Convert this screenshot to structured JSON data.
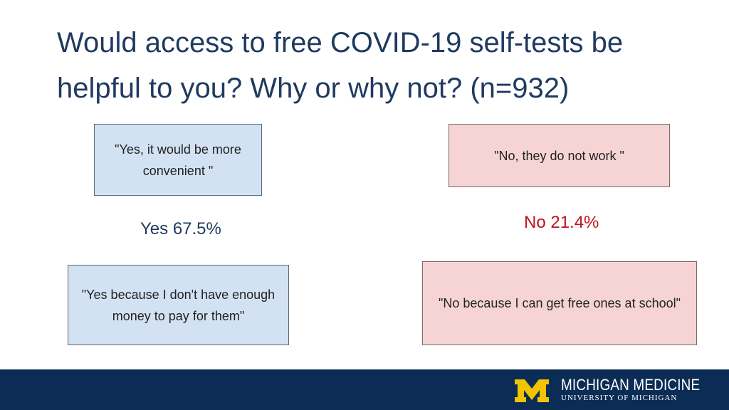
{
  "title": "Would access to free COVID-19 self-tests be helpful to you? Why or why not? (n=932)",
  "quotes": {
    "yes_convenient": "\"Yes, it would be more convenient \"",
    "no_dont_work": "\"No, they do not work \"",
    "yes_money": "\"Yes because I don't have enough money to pay for them\"",
    "no_school": "\"No because I can get free ones at school\""
  },
  "stats": {
    "yes": "Yes 67.5%",
    "no": "No 21.4%"
  },
  "footer": {
    "brand_name": "MICHIGAN MEDICINE",
    "brand_subtitle": "UNIVERSITY OF MICHIGAN",
    "logo_icon": "block-m-logo",
    "logo_color": "#f2c300",
    "background_color": "#0b2d55"
  },
  "colors": {
    "yes_box": "#d3e2f2",
    "no_box": "#f6d4d6",
    "yes_text": "#1f3a5f",
    "no_text": "#c0141c"
  }
}
